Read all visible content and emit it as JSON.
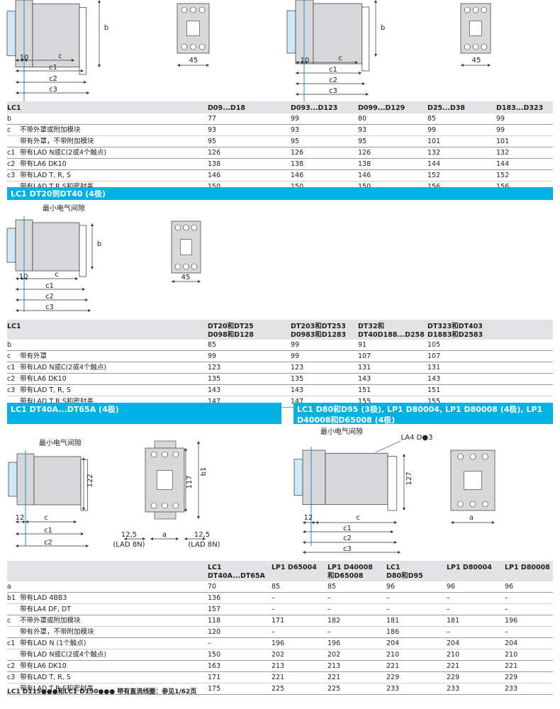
{
  "diagram_labels": {
    "dim_10": "10",
    "dim_12": "12",
    "dim_c": "c",
    "dim_c1": "c1",
    "dim_c2": "c2",
    "dim_c3": "c3",
    "dim_b": "b",
    "dim_b1": "b1",
    "dim_a": "a",
    "dim_45": "45",
    "dim_122": "122",
    "dim_117": "117",
    "dim_127": "127",
    "dim_12_5": "12,5",
    "lad8n": "(LAD 8N)",
    "min_clearance": "最小电气间隙",
    "la4": "LA4 D●3"
  },
  "table1": {
    "header": [
      "LC1",
      "D09...D18",
      "D093...D123",
      "D099...D129",
      "D25...D38",
      "D183...D323"
    ],
    "rows": [
      {
        "code": "b",
        "desc": "",
        "values": [
          "77",
          "99",
          "80",
          "85",
          "99"
        ]
      },
      {
        "code": "c",
        "desc": "不带外罩或附加模块",
        "values": [
          "93",
          "93",
          "93",
          "99",
          "99"
        ]
      },
      {
        "code": "",
        "desc": "带有外罩，不带附加模块",
        "values": [
          "95",
          "95",
          "95",
          "101",
          "101"
        ]
      },
      {
        "code": "c1",
        "desc": "带有LAD N或C(2或4个触点)",
        "values": [
          "126",
          "126",
          "126",
          "132",
          "132"
        ]
      },
      {
        "code": "c2",
        "desc": "带有LA6 DK10",
        "values": [
          "138",
          "138",
          "138",
          "144",
          "144"
        ]
      },
      {
        "code": "c3",
        "desc": "带有LAD T, R, S",
        "values": [
          "146",
          "146",
          "146",
          "152",
          "152"
        ]
      },
      {
        "code": "",
        "desc": "带有LAD T,R,S和密封盖",
        "values": [
          "150",
          "150",
          "150",
          "156",
          "156"
        ]
      }
    ]
  },
  "section2_title": "LC1 DT20到DT40 (4极)",
  "table2": {
    "header": [
      "LC1",
      "DT20和DT25\nD098和D128",
      "DT203和DT253\nD0983和D1283",
      "DT32和\nDT40D188...D258",
      "DT323和DT403\nD1883和D2583"
    ],
    "rows": [
      {
        "code": "b",
        "desc": "",
        "values": [
          "85",
          "99",
          "91",
          "105"
        ]
      },
      {
        "code": "c",
        "desc": "带有外罩",
        "values": [
          "99",
          "99",
          "107",
          "107"
        ]
      },
      {
        "code": "c1",
        "desc": "带有LAD N或C(2或4个触点)",
        "values": [
          "123",
          "123",
          "131",
          "131"
        ]
      },
      {
        "code": "c2",
        "desc": "带有LA6 DK10",
        "values": [
          "135",
          "135",
          "143",
          "143"
        ]
      },
      {
        "code": "c3",
        "desc": "带有LAD T, R, S",
        "values": [
          "143",
          "143",
          "151",
          "151"
        ]
      },
      {
        "code": "",
        "desc": "带有LAD T,R,S和密封盖",
        "values": [
          "147",
          "147",
          "155",
          "155"
        ]
      }
    ]
  },
  "section3_title": "LC1 DT40A...DT65A (4极)",
  "section4_title": "LC1 D80和D95 (3极), LP1 D80004, LP1 D80008 (4极), LP1 D40008和D65008 (4极)",
  "table3": {
    "header": [
      "",
      "LC1\nDT40A...DT65A",
      "LP1 D65004",
      "LP1 D40008\n和D65008",
      "LC1\nD80和D95",
      "LP1 D80004",
      "LP1 D80008"
    ],
    "rows": [
      {
        "code": "a",
        "desc": "",
        "values": [
          "70",
          "85",
          "85",
          "96",
          "96",
          "96"
        ]
      },
      {
        "code": "b1",
        "desc": "带有LAD 4BB3",
        "values": [
          "136",
          "–",
          "–",
          "–",
          "–",
          "–"
        ]
      },
      {
        "code": "",
        "desc": "带有LA4 DF, DT",
        "values": [
          "157",
          "–",
          "–",
          "–",
          "–",
          "–"
        ]
      },
      {
        "code": "c",
        "desc": "不带外罩或附加模块",
        "values": [
          "118",
          "171",
          "182",
          "181",
          "181",
          "196"
        ]
      },
      {
        "code": "",
        "desc": "带有外罩，不带附加模块",
        "values": [
          "120",
          "–",
          "–",
          "186",
          "–",
          "–"
        ]
      },
      {
        "code": "c1",
        "desc": "带有LAD N (1个触点)",
        "values": [
          "–",
          "196",
          "196",
          "204",
          "204",
          "204"
        ]
      },
      {
        "code": "",
        "desc": "带有LAD N或C(2或4个触点)",
        "values": [
          "150",
          "202",
          "202",
          "210",
          "210",
          "210"
        ]
      },
      {
        "code": "c2",
        "desc": "带有LA6 DK10",
        "values": [
          "163",
          "213",
          "213",
          "221",
          "221",
          "221"
        ]
      },
      {
        "code": "c3",
        "desc": "带有LAD T, R, S",
        "values": [
          "171",
          "221",
          "221",
          "229",
          "229",
          "229"
        ]
      },
      {
        "code": "",
        "desc": "带有LAD T,R,S和密封盖",
        "values": [
          "175",
          "225",
          "225",
          "233",
          "233",
          "233"
        ]
      }
    ]
  },
  "footnote": "LC1 D115●●●和LC1 D150●●● 带有直流线圈：参见1/62页",
  "colors": {
    "accent": "#00b2e3",
    "header_bg": "#e3e3e5",
    "part_fill": "#d8d8da",
    "highlight": "#cfe9f7"
  }
}
